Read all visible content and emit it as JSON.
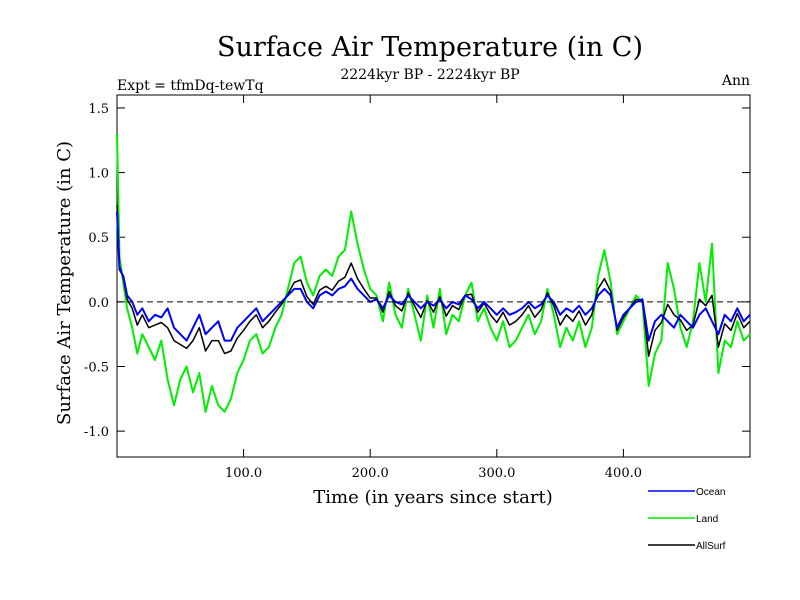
{
  "chart_data": {
    "type": "line",
    "title": "Surface Air Temperature (in C)",
    "subtitle": "2224kyr BP - 2224kyr BP",
    "left_label": "Expt = tfmDq-tewTq",
    "right_label": "Ann",
    "xlabel": "Time (in years since start)",
    "ylabel": "Surface Air Temperature (in C)",
    "xlim": [
      0,
      500
    ],
    "ylim": [
      -1.2,
      1.6
    ],
    "x_ticks": [
      100,
      200,
      300,
      400
    ],
    "x_tick_labels": [
      "100.0",
      "200.0",
      "300.0",
      "400.0"
    ],
    "y_ticks": [
      1.5,
      1.0,
      0.5,
      0.0,
      -0.5,
      -1.0
    ],
    "y_tick_labels": [
      "1.5",
      "1.0",
      "0.5",
      "0.0",
      "-0.5",
      "-1.0"
    ],
    "reference_line": 0.0,
    "legend_position": "bottom-right",
    "series": [
      {
        "name": "Ocean",
        "color": "#0000ff",
        "points": [
          [
            0,
            0.7
          ],
          [
            2,
            0.25
          ],
          [
            5,
            0.2
          ],
          [
            8,
            0.05
          ],
          [
            12,
            0.0
          ],
          [
            16,
            -0.1
          ],
          [
            20,
            -0.05
          ],
          [
            25,
            -0.15
          ],
          [
            30,
            -0.1
          ],
          [
            35,
            -0.12
          ],
          [
            40,
            -0.05
          ],
          [
            45,
            -0.2
          ],
          [
            50,
            -0.25
          ],
          [
            55,
            -0.3
          ],
          [
            60,
            -0.2
          ],
          [
            65,
            -0.1
          ],
          [
            70,
            -0.25
          ],
          [
            75,
            -0.2
          ],
          [
            80,
            -0.15
          ],
          [
            85,
            -0.3
          ],
          [
            90,
            -0.3
          ],
          [
            95,
            -0.2
          ],
          [
            100,
            -0.15
          ],
          [
            105,
            -0.1
          ],
          [
            110,
            -0.05
          ],
          [
            115,
            -0.15
          ],
          [
            120,
            -0.1
          ],
          [
            125,
            -0.05
          ],
          [
            130,
            0.0
          ],
          [
            135,
            0.05
          ],
          [
            140,
            0.1
          ],
          [
            145,
            0.1
          ],
          [
            150,
            0.0
          ],
          [
            155,
            -0.05
          ],
          [
            160,
            0.05
          ],
          [
            165,
            0.08
          ],
          [
            170,
            0.05
          ],
          [
            175,
            0.1
          ],
          [
            180,
            0.12
          ],
          [
            185,
            0.18
          ],
          [
            190,
            0.1
          ],
          [
            195,
            0.05
          ],
          [
            200,
            0.0
          ],
          [
            205,
            0.02
          ],
          [
            210,
            -0.05
          ],
          [
            215,
            0.05
          ],
          [
            220,
            0.0
          ],
          [
            225,
            -0.02
          ],
          [
            230,
            0.05
          ],
          [
            235,
            0.0
          ],
          [
            240,
            -0.05
          ],
          [
            245,
            0.0
          ],
          [
            250,
            -0.03
          ],
          [
            255,
            0.02
          ],
          [
            260,
            -0.05
          ],
          [
            265,
            0.0
          ],
          [
            270,
            -0.02
          ],
          [
            275,
            0.05
          ],
          [
            280,
            0.02
          ],
          [
            285,
            -0.05
          ],
          [
            290,
            0.0
          ],
          [
            295,
            -0.05
          ],
          [
            300,
            -0.1
          ],
          [
            305,
            -0.05
          ],
          [
            310,
            -0.1
          ],
          [
            315,
            -0.08
          ],
          [
            320,
            -0.05
          ],
          [
            325,
            0.0
          ],
          [
            330,
            -0.05
          ],
          [
            335,
            -0.02
          ],
          [
            340,
            0.05
          ],
          [
            345,
            0.0
          ],
          [
            350,
            -0.1
          ],
          [
            355,
            -0.05
          ],
          [
            360,
            -0.08
          ],
          [
            365,
            -0.03
          ],
          [
            370,
            -0.1
          ],
          [
            375,
            -0.05
          ],
          [
            380,
            0.05
          ],
          [
            385,
            0.1
          ],
          [
            390,
            0.05
          ],
          [
            395,
            -0.2
          ],
          [
            400,
            -0.1
          ],
          [
            405,
            -0.05
          ],
          [
            410,
            0.0
          ],
          [
            415,
            0.02
          ],
          [
            420,
            -0.3
          ],
          [
            425,
            -0.15
          ],
          [
            430,
            -0.1
          ],
          [
            435,
            -0.15
          ],
          [
            440,
            -0.2
          ],
          [
            445,
            -0.1
          ],
          [
            450,
            -0.15
          ],
          [
            455,
            -0.2
          ],
          [
            460,
            -0.1
          ],
          [
            465,
            -0.05
          ],
          [
            470,
            -0.15
          ],
          [
            475,
            -0.25
          ],
          [
            480,
            -0.1
          ],
          [
            485,
            -0.15
          ],
          [
            490,
            -0.05
          ],
          [
            495,
            -0.15
          ],
          [
            500,
            -0.1
          ]
        ]
      },
      {
        "name": "Land",
        "color": "#00ee00",
        "points": [
          [
            0,
            1.3
          ],
          [
            2,
            0.35
          ],
          [
            5,
            0.15
          ],
          [
            8,
            -0.05
          ],
          [
            12,
            -0.2
          ],
          [
            16,
            -0.4
          ],
          [
            20,
            -0.25
          ],
          [
            25,
            -0.35
          ],
          [
            30,
            -0.45
          ],
          [
            35,
            -0.3
          ],
          [
            40,
            -0.6
          ],
          [
            45,
            -0.8
          ],
          [
            50,
            -0.6
          ],
          [
            55,
            -0.5
          ],
          [
            60,
            -0.7
          ],
          [
            65,
            -0.55
          ],
          [
            70,
            -0.85
          ],
          [
            75,
            -0.65
          ],
          [
            80,
            -0.8
          ],
          [
            85,
            -0.85
          ],
          [
            90,
            -0.75
          ],
          [
            95,
            -0.55
          ],
          [
            100,
            -0.45
          ],
          [
            105,
            -0.3
          ],
          [
            110,
            -0.25
          ],
          [
            115,
            -0.4
          ],
          [
            120,
            -0.35
          ],
          [
            125,
            -0.2
          ],
          [
            130,
            -0.1
          ],
          [
            135,
            0.1
          ],
          [
            140,
            0.3
          ],
          [
            145,
            0.35
          ],
          [
            150,
            0.15
          ],
          [
            155,
            0.05
          ],
          [
            160,
            0.2
          ],
          [
            165,
            0.25
          ],
          [
            170,
            0.2
          ],
          [
            175,
            0.35
          ],
          [
            180,
            0.4
          ],
          [
            185,
            0.7
          ],
          [
            190,
            0.45
          ],
          [
            195,
            0.25
          ],
          [
            200,
            0.1
          ],
          [
            205,
            0.05
          ],
          [
            210,
            -0.15
          ],
          [
            215,
            0.15
          ],
          [
            220,
            -0.1
          ],
          [
            225,
            -0.2
          ],
          [
            230,
            0.1
          ],
          [
            235,
            -0.1
          ],
          [
            240,
            -0.3
          ],
          [
            245,
            0.05
          ],
          [
            250,
            -0.2
          ],
          [
            255,
            0.1
          ],
          [
            260,
            -0.25
          ],
          [
            265,
            -0.1
          ],
          [
            270,
            -0.15
          ],
          [
            275,
            0.05
          ],
          [
            280,
            0.15
          ],
          [
            285,
            -0.15
          ],
          [
            290,
            -0.05
          ],
          [
            295,
            -0.2
          ],
          [
            300,
            -0.3
          ],
          [
            305,
            -0.15
          ],
          [
            310,
            -0.35
          ],
          [
            315,
            -0.3
          ],
          [
            320,
            -0.2
          ],
          [
            325,
            -0.1
          ],
          [
            330,
            -0.25
          ],
          [
            335,
            -0.15
          ],
          [
            340,
            0.1
          ],
          [
            345,
            -0.1
          ],
          [
            350,
            -0.35
          ],
          [
            355,
            -0.2
          ],
          [
            360,
            -0.3
          ],
          [
            365,
            -0.15
          ],
          [
            370,
            -0.35
          ],
          [
            375,
            -0.2
          ],
          [
            380,
            0.2
          ],
          [
            385,
            0.4
          ],
          [
            390,
            0.15
          ],
          [
            395,
            -0.25
          ],
          [
            400,
            -0.15
          ],
          [
            405,
            -0.05
          ],
          [
            410,
            0.05
          ],
          [
            415,
            0.0
          ],
          [
            420,
            -0.65
          ],
          [
            425,
            -0.4
          ],
          [
            430,
            -0.3
          ],
          [
            435,
            0.3
          ],
          [
            440,
            0.1
          ],
          [
            445,
            -0.2
          ],
          [
            450,
            -0.35
          ],
          [
            455,
            -0.15
          ],
          [
            460,
            0.3
          ],
          [
            465,
            0.0
          ],
          [
            470,
            0.45
          ],
          [
            475,
            -0.55
          ],
          [
            480,
            -0.3
          ],
          [
            485,
            -0.35
          ],
          [
            490,
            -0.15
          ],
          [
            495,
            -0.3
          ],
          [
            500,
            -0.25
          ]
        ]
      },
      {
        "name": "AllSurf",
        "color": "#000000",
        "points": [
          [
            0,
            0.75
          ],
          [
            2,
            0.28
          ],
          [
            5,
            0.18
          ],
          [
            8,
            0.02
          ],
          [
            12,
            -0.05
          ],
          [
            16,
            -0.18
          ],
          [
            20,
            -0.1
          ],
          [
            25,
            -0.2
          ],
          [
            30,
            -0.18
          ],
          [
            35,
            -0.16
          ],
          [
            40,
            -0.2
          ],
          [
            45,
            -0.3
          ],
          [
            50,
            -0.33
          ],
          [
            55,
            -0.36
          ],
          [
            60,
            -0.3
          ],
          [
            65,
            -0.2
          ],
          [
            70,
            -0.38
          ],
          [
            75,
            -0.3
          ],
          [
            80,
            -0.3
          ],
          [
            85,
            -0.4
          ],
          [
            90,
            -0.38
          ],
          [
            95,
            -0.28
          ],
          [
            100,
            -0.22
          ],
          [
            105,
            -0.15
          ],
          [
            110,
            -0.1
          ],
          [
            115,
            -0.2
          ],
          [
            120,
            -0.15
          ],
          [
            125,
            -0.08
          ],
          [
            130,
            -0.02
          ],
          [
            135,
            0.06
          ],
          [
            140,
            0.15
          ],
          [
            145,
            0.17
          ],
          [
            150,
            0.04
          ],
          [
            155,
            -0.02
          ],
          [
            160,
            0.09
          ],
          [
            165,
            0.12
          ],
          [
            170,
            0.09
          ],
          [
            175,
            0.16
          ],
          [
            180,
            0.19
          ],
          [
            185,
            0.3
          ],
          [
            190,
            0.18
          ],
          [
            195,
            0.1
          ],
          [
            200,
            0.03
          ],
          [
            205,
            0.03
          ],
          [
            210,
            -0.08
          ],
          [
            215,
            0.08
          ],
          [
            220,
            -0.03
          ],
          [
            225,
            -0.07
          ],
          [
            230,
            0.07
          ],
          [
            235,
            -0.03
          ],
          [
            240,
            -0.12
          ],
          [
            245,
            0.01
          ],
          [
            250,
            -0.08
          ],
          [
            255,
            0.04
          ],
          [
            260,
            -0.11
          ],
          [
            265,
            -0.03
          ],
          [
            270,
            -0.06
          ],
          [
            275,
            0.05
          ],
          [
            280,
            0.06
          ],
          [
            285,
            -0.08
          ],
          [
            290,
            -0.01
          ],
          [
            295,
            -0.1
          ],
          [
            300,
            -0.16
          ],
          [
            305,
            -0.08
          ],
          [
            310,
            -0.18
          ],
          [
            315,
            -0.15
          ],
          [
            320,
            -0.1
          ],
          [
            325,
            -0.03
          ],
          [
            330,
            -0.12
          ],
          [
            335,
            -0.06
          ],
          [
            340,
            0.07
          ],
          [
            345,
            -0.03
          ],
          [
            350,
            -0.18
          ],
          [
            355,
            -0.1
          ],
          [
            360,
            -0.15
          ],
          [
            365,
            -0.07
          ],
          [
            370,
            -0.18
          ],
          [
            375,
            -0.1
          ],
          [
            380,
            0.1
          ],
          [
            385,
            0.18
          ],
          [
            390,
            0.08
          ],
          [
            395,
            -0.22
          ],
          [
            400,
            -0.12
          ],
          [
            405,
            -0.05
          ],
          [
            410,
            0.02
          ],
          [
            415,
            0.01
          ],
          [
            420,
            -0.42
          ],
          [
            425,
            -0.22
          ],
          [
            430,
            -0.16
          ],
          [
            435,
            -0.02
          ],
          [
            440,
            -0.1
          ],
          [
            445,
            -0.14
          ],
          [
            450,
            -0.22
          ],
          [
            455,
            -0.18
          ],
          [
            460,
            0.02
          ],
          [
            465,
            -0.03
          ],
          [
            470,
            0.05
          ],
          [
            475,
            -0.35
          ],
          [
            480,
            -0.17
          ],
          [
            485,
            -0.22
          ],
          [
            490,
            -0.09
          ],
          [
            495,
            -0.2
          ],
          [
            500,
            -0.15
          ]
        ]
      }
    ]
  }
}
